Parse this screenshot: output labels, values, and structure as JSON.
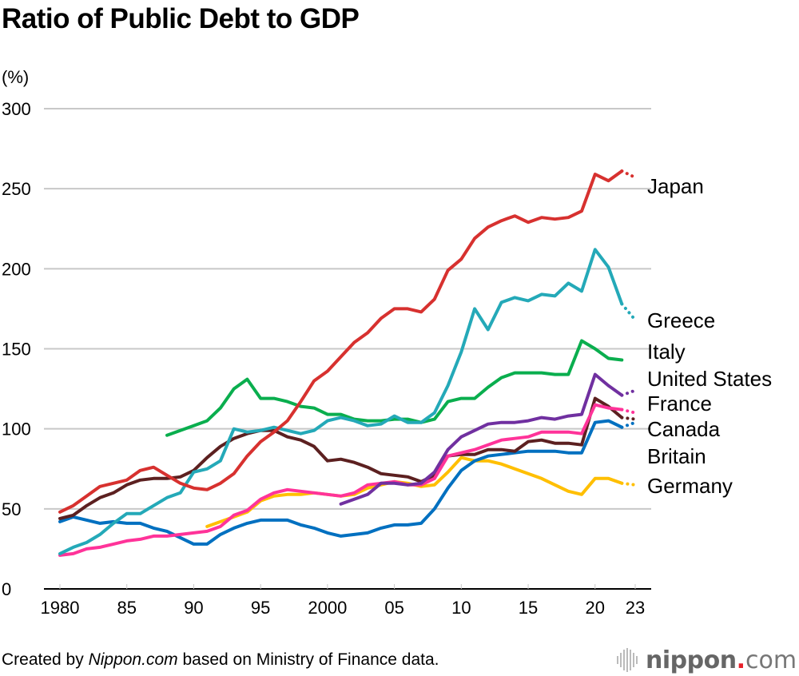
{
  "chart_data": {
    "type": "line",
    "title": "Ratio of Public Debt to GDP",
    "ylabel": "(%)",
    "xlabel": "",
    "ylim": [
      0,
      300
    ],
    "xlim": [
      1980,
      2023
    ],
    "yticks": [
      0,
      50,
      100,
      150,
      200,
      250,
      300
    ],
    "xticks": [
      {
        "value": 1980,
        "label": "1980"
      },
      {
        "value": 1985,
        "label": "85"
      },
      {
        "value": 1990,
        "label": "90"
      },
      {
        "value": 1995,
        "label": "95"
      },
      {
        "value": 2000,
        "label": "2000"
      },
      {
        "value": 2005,
        "label": "05"
      },
      {
        "value": 2010,
        "label": "10"
      },
      {
        "value": 2015,
        "label": "15"
      },
      {
        "value": 2020,
        "label": "20"
      },
      {
        "value": 2023,
        "label": "23"
      }
    ],
    "grid": true,
    "legend": "direct labels at right end of lines",
    "projection_note": "Values after 2021 drawn dotted (estimates)",
    "projection_start": 2021,
    "series": [
      {
        "name": "Japan",
        "color": "#d7312f",
        "start": 1980,
        "values": [
          48,
          52,
          58,
          64,
          66,
          68,
          74,
          76,
          71,
          66,
          63,
          62,
          66,
          72,
          83,
          92,
          98,
          105,
          117,
          130,
          136,
          145,
          154,
          160,
          169,
          175,
          175,
          173,
          181,
          199,
          206,
          219,
          226,
          230,
          233,
          229,
          232,
          231,
          232,
          236,
          259,
          255,
          261,
          257
        ]
      },
      {
        "name": "Greece",
        "color": "#24a9b8",
        "start": 1980,
        "values": [
          22,
          26,
          29,
          34,
          41,
          47,
          47,
          52,
          57,
          60,
          73,
          75,
          80,
          100,
          98,
          99,
          101,
          99,
          97,
          99,
          105,
          107,
          105,
          102,
          103,
          108,
          104,
          104,
          110,
          127,
          148,
          175,
          162,
          179,
          182,
          180,
          184,
          183,
          191,
          186,
          212,
          201,
          178,
          168
        ]
      },
      {
        "name": "Italy",
        "color": "#0aae4e",
        "start": 1988,
        "values": [
          96,
          99,
          102,
          105,
          113,
          125,
          131,
          119,
          119,
          117,
          114,
          113,
          109,
          109,
          106,
          105,
          105,
          106,
          106,
          104,
          106,
          117,
          119,
          119,
          126,
          132,
          135,
          135,
          135,
          134,
          134,
          155,
          150,
          144,
          143
        ]
      },
      {
        "name": "United States",
        "color": "#7030a0",
        "start": 2001,
        "values": [
          53,
          56,
          59,
          66,
          66,
          65,
          66,
          73,
          87,
          95,
          99,
          103,
          104,
          104,
          105,
          107,
          106,
          108,
          109,
          134,
          127,
          121,
          124
        ]
      },
      {
        "name": "France",
        "color": "#ff3399",
        "start": 1980,
        "values": [
          21,
          22,
          25,
          26,
          28,
          30,
          31,
          33,
          33,
          34,
          35,
          36,
          39,
          46,
          49,
          56,
          60,
          62,
          61,
          60,
          59,
          58,
          60,
          65,
          66,
          67,
          65,
          65,
          69,
          83,
          85,
          87,
          90,
          93,
          94,
          95,
          98,
          98,
          98,
          97,
          115,
          113,
          112,
          110
        ]
      },
      {
        "name": "Canada",
        "color": "#5c2020",
        "start": 1980,
        "values": [
          44,
          46,
          52,
          57,
          60,
          65,
          68,
          69,
          69,
          70,
          74,
          82,
          89,
          94,
          97,
          99,
          99,
          95,
          93,
          89,
          80,
          81,
          79,
          76,
          72,
          71,
          70,
          67,
          71,
          83,
          84,
          84,
          87,
          87,
          86,
          92,
          93,
          91,
          91,
          90,
          119,
          114,
          107,
          106
        ]
      },
      {
        "name": "Britain",
        "color": "#0070c0",
        "start": 1980,
        "values": [
          42,
          45,
          43,
          41,
          42,
          41,
          41,
          38,
          36,
          32,
          28,
          28,
          34,
          38,
          41,
          43,
          43,
          43,
          40,
          38,
          35,
          33,
          34,
          35,
          38,
          40,
          40,
          41,
          50,
          63,
          74,
          80,
          83,
          84,
          85,
          86,
          86,
          86,
          85,
          85,
          104,
          105,
          101,
          104
        ]
      },
      {
        "name": "Germany",
        "color": "#ffbf00",
        "start": 1991,
        "values": [
          39,
          42,
          45,
          48,
          55,
          58,
          59,
          59,
          60,
          59,
          58,
          59,
          63,
          65,
          67,
          66,
          64,
          65,
          73,
          82,
          80,
          80,
          78,
          75,
          72,
          69,
          65,
          61,
          59,
          69,
          69,
          66,
          65
        ]
      }
    ],
    "labels": [
      "Japan",
      "Greece",
      "Italy",
      "United States",
      "France",
      "Canada",
      "Britain",
      "Germany"
    ]
  },
  "footer": {
    "credit_prefix": "Created by ",
    "credit_source": "Nippon.com",
    "credit_suffix": " based on Ministry of Finance data."
  },
  "logo": {
    "name": "nippon",
    "dot": ".",
    "tld": "com"
  }
}
